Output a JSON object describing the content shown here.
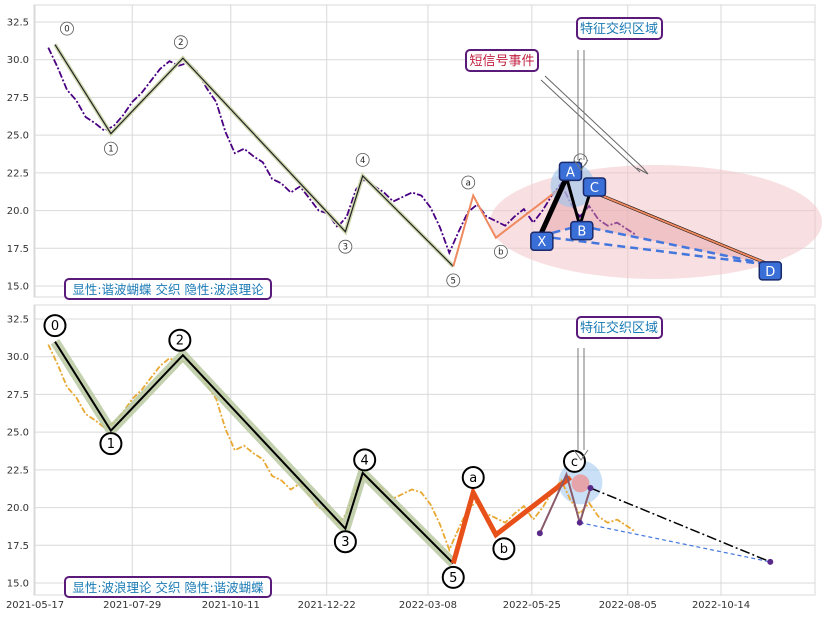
{
  "chart_data": [
    {
      "type": "line",
      "panel": "top",
      "ylim": [
        14.5,
        33
      ],
      "yticks": [
        "15.0",
        "17.5",
        "20.0",
        "22.5",
        "25.0",
        "27.5",
        "30.0",
        "32.5"
      ],
      "grid": true,
      "legend_text": "显性:谐波蝴蝶 交织 隐性:波浪理论",
      "annotations": [
        "短信号事件",
        "特征交织区域"
      ],
      "wave_points": [
        {
          "label": "0",
          "x": "2021-06-01",
          "y": 31.0
        },
        {
          "label": "1",
          "x": "2021-07-13",
          "y": 25.1
        },
        {
          "label": "2",
          "x": "2021-09-05",
          "y": 30.1
        },
        {
          "label": "3",
          "x": "2022-01-05",
          "y": 18.6
        },
        {
          "label": "4",
          "x": "2022-01-18",
          "y": 22.3
        },
        {
          "label": "5",
          "x": "2022-03-27",
          "y": 16.3
        },
        {
          "label": "a",
          "x": "2022-04-11",
          "y": 21.0
        },
        {
          "label": "b",
          "x": "2022-04-28",
          "y": 18.2
        },
        {
          "label": "c",
          "x": "2022-06-23",
          "y": 22.0
        }
      ],
      "harmonic_points": [
        {
          "label": "X",
          "x": "2022-05-31",
          "y": 18.3
        },
        {
          "label": "A",
          "x": "2022-06-20",
          "y": 22.2
        },
        {
          "label": "B",
          "x": "2022-06-30",
          "y": 19.0
        },
        {
          "label": "C",
          "x": "2022-07-08",
          "y": 21.3
        },
        {
          "label": "D",
          "x": "2022-11-20",
          "y": 16.4
        }
      ],
      "price_series": [
        [
          "2021-05-27",
          30.8
        ],
        [
          "2021-06-03",
          29.5
        ],
        [
          "2021-06-10",
          28.0
        ],
        [
          "2021-06-17",
          27.3
        ],
        [
          "2021-06-24",
          26.2
        ],
        [
          "2021-07-01",
          25.8
        ],
        [
          "2021-07-08",
          25.3
        ],
        [
          "2021-07-15",
          25.6
        ],
        [
          "2021-07-22",
          26.3
        ],
        [
          "2021-07-29",
          27.2
        ],
        [
          "2021-08-05",
          27.8
        ],
        [
          "2021-08-12",
          28.6
        ],
        [
          "2021-08-19",
          29.4
        ],
        [
          "2021-08-26",
          29.9
        ],
        [
          "2021-09-02",
          29.6
        ],
        [
          "2021-09-09",
          29.8
        ],
        [
          "2021-09-16",
          29.2
        ],
        [
          "2021-09-23",
          28.1
        ],
        [
          "2021-09-30",
          27.2
        ],
        [
          "2021-10-07",
          25.2
        ],
        [
          "2021-10-14",
          23.8
        ],
        [
          "2021-10-21",
          24.1
        ],
        [
          "2021-10-28",
          23.6
        ],
        [
          "2021-11-04",
          23.2
        ],
        [
          "2021-11-11",
          22.1
        ],
        [
          "2021-11-18",
          21.8
        ],
        [
          "2021-11-25",
          21.2
        ],
        [
          "2021-12-02",
          21.6
        ],
        [
          "2021-12-09",
          20.8
        ],
        [
          "2021-12-16",
          20.0
        ],
        [
          "2021-12-23",
          19.8
        ],
        [
          "2021-12-30",
          18.9
        ],
        [
          "2022-01-06",
          19.6
        ],
        [
          "2022-01-13",
          21.4
        ],
        [
          "2022-01-20",
          22.1
        ],
        [
          "2022-01-27",
          21.6
        ],
        [
          "2022-02-03",
          21.2
        ],
        [
          "2022-02-10",
          20.6
        ],
        [
          "2022-02-17",
          20.9
        ],
        [
          "2022-02-24",
          21.2
        ],
        [
          "2022-03-03",
          21.0
        ],
        [
          "2022-03-10",
          20.2
        ],
        [
          "2022-03-17",
          18.9
        ],
        [
          "2022-03-24",
          17.2
        ],
        [
          "2022-03-31",
          18.6
        ],
        [
          "2022-04-07",
          19.9
        ],
        [
          "2022-04-14",
          20.4
        ],
        [
          "2022-04-21",
          19.6
        ],
        [
          "2022-04-28",
          19.3
        ],
        [
          "2022-05-05",
          19.0
        ],
        [
          "2022-05-12",
          19.6
        ],
        [
          "2022-05-19",
          20.1
        ],
        [
          "2022-05-26",
          19.2
        ],
        [
          "2022-06-02",
          20.0
        ],
        [
          "2022-06-09",
          21.0
        ],
        [
          "2022-06-16",
          21.8
        ],
        [
          "2022-06-23",
          20.5
        ],
        [
          "2022-06-30",
          19.6
        ],
        [
          "2022-07-07",
          20.3
        ],
        [
          "2022-07-14",
          19.4
        ],
        [
          "2022-07-21",
          19.0
        ],
        [
          "2022-07-28",
          19.2
        ],
        [
          "2022-08-04",
          18.8
        ],
        [
          "2022-08-11",
          18.4
        ]
      ]
    },
    {
      "type": "line",
      "panel": "bottom",
      "ylim": [
        14.5,
        33
      ],
      "yticks": [
        "15.0",
        "17.5",
        "20.0",
        "22.5",
        "25.0",
        "27.5",
        "30.0",
        "32.5"
      ],
      "xticks": [
        "2021-05-17",
        "2021-07-29",
        "2021-10-11",
        "2021-12-22",
        "2022-03-08",
        "2022-05-25",
        "2022-08-05",
        "2022-10-14"
      ],
      "grid": true,
      "legend_text": "显性:波浪理论 交织 隐性:谐波蝴蝶",
      "annotations": [
        "特征交织区域"
      ]
    }
  ],
  "colors": {
    "top_price": "#4b0082",
    "bottom_price": "#e8a832",
    "wave_line": "#000000",
    "wave_halo": "#b8c9a0",
    "correction": "#e8501a",
    "harmonic_box": "#3a6fd8",
    "dashed_blue": "#4477dd",
    "ellipse": "#f3c4c8",
    "label_border": "#5a1a7a",
    "label_text": "#1a7ab5",
    "event_text": "#c02040"
  }
}
